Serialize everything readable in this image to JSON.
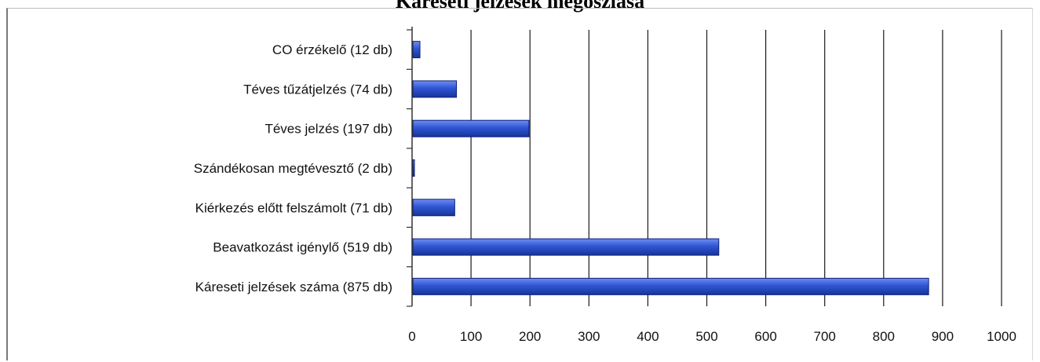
{
  "chart_data": {
    "type": "bar",
    "orientation": "horizontal",
    "title": "Káreseti jelzések megoszlása",
    "categories": [
      "CO érzékelő  (12 db)",
      "Téves tűzátjelzés  (74 db)",
      "Téves jelzés  (197 db)",
      "Szándékosan megtévesztő  (2 db)",
      "Kiérkezés előtt felszámolt  (71 db)",
      "Beavatkozást igénylő  (519 db)",
      "Káreseti jelzések száma (875 db)"
    ],
    "values": [
      12,
      74,
      197,
      2,
      71,
      519,
      875
    ],
    "xlim": [
      0,
      1000
    ],
    "xticks": [
      0,
      100,
      200,
      300,
      400,
      500,
      600,
      700,
      800,
      900,
      1000
    ],
    "xticklabels": [
      "0",
      "100",
      "200",
      "300",
      "400",
      "500",
      "600",
      "700",
      "800",
      "900",
      "1000"
    ],
    "grid": "vertical",
    "legend": "none",
    "colors": {
      "bar_fill": "#2f55d4",
      "bar_edge": "#0b1f7a",
      "gridline": "#1a1a1a",
      "axis": "#333333"
    }
  }
}
